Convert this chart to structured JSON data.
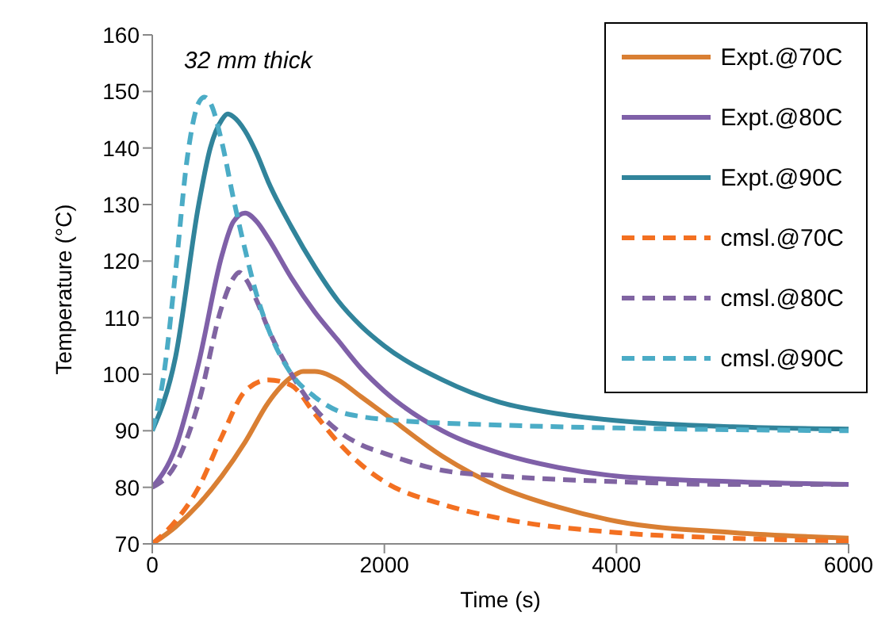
{
  "chart_data": {
    "type": "line",
    "xlabel": "Time (s)",
    "ylabel": "Temperature (°C)",
    "annotations": [
      "32 mm thick"
    ],
    "xlim": [
      0,
      6000
    ],
    "xticks": [
      0,
      2000,
      4000,
      6000
    ],
    "ylim": [
      70,
      160
    ],
    "yticks": [
      70,
      80,
      90,
      100,
      110,
      120,
      130,
      140,
      150,
      160
    ],
    "legend": "top right",
    "marker": "none",
    "series": [
      {
        "name": "Expt.@70C",
        "color": "#d97f33",
        "line_style": "solid",
        "x": [
          0,
          200,
          400,
          600,
          800,
          1000,
          1200,
          1300,
          1400,
          1600,
          1800,
          2000,
          2500,
          3000,
          3500,
          4000,
          5000,
          6000
        ],
        "values": [
          70,
          73,
          77,
          82,
          88,
          95,
          99.5,
          100.5,
          100.5,
          99,
          96,
          93,
          85.5,
          80,
          76.5,
          74,
          72,
          71
        ]
      },
      {
        "name": "Expt.@80C",
        "color": "#7f60a8",
        "line_style": "solid",
        "x": [
          0,
          200,
          400,
          600,
          700,
          800,
          900,
          1000,
          1200,
          1400,
          1600,
          1800,
          2000,
          2500,
          3000,
          3500,
          4000,
          5000,
          6000
        ],
        "values": [
          80,
          87,
          102,
          121,
          127,
          128.5,
          127,
          124,
          117,
          111,
          106,
          101,
          97,
          90,
          86,
          83.5,
          82,
          81,
          80.5
        ]
      },
      {
        "name": "Expt.@90C",
        "color": "#31849b",
        "line_style": "solid",
        "x": [
          0,
          200,
          400,
          500,
          600,
          650,
          700,
          800,
          900,
          1000,
          1200,
          1400,
          1600,
          1800,
          2000,
          2500,
          3000,
          3500,
          4000,
          5000,
          6000
        ],
        "values": [
          90,
          103,
          130,
          140,
          145,
          146,
          145.5,
          143,
          139,
          134,
          126,
          119,
          113,
          108.5,
          105,
          99,
          95,
          93,
          91.8,
          90.7,
          90.3
        ]
      },
      {
        "name": "cmsl.@70C",
        "color": "#f37021",
        "line_style": "dashed",
        "x": [
          0,
          200,
          400,
          600,
          800,
          1000,
          1200,
          1400,
          1600,
          1800,
          2000,
          2500,
          3000,
          4000,
          5000,
          6000
        ],
        "values": [
          70,
          74,
          80,
          89,
          97,
          99,
          98,
          93,
          88,
          84,
          81,
          77,
          74.5,
          72,
          71,
          70.5
        ]
      },
      {
        "name": "cmsl.@80C",
        "color": "#8064a2",
        "line_style": "dashed",
        "x": [
          0,
          200,
          400,
          600,
          700,
          750,
          800,
          900,
          1000,
          1200,
          1400,
          1600,
          1800,
          2000,
          2500,
          3000,
          4000,
          5000,
          6000
        ],
        "values": [
          80,
          84,
          95,
          112,
          117,
          118,
          117,
          113,
          108,
          100,
          94,
          90,
          87.5,
          86,
          83,
          82,
          81,
          80.5,
          80.5
        ]
      },
      {
        "name": "cmsl.@90C",
        "color": "#4bacc6",
        "line_style": "dashed",
        "x": [
          0,
          100,
          200,
          300,
          400,
          450,
          500,
          600,
          700,
          800,
          900,
          1000,
          1200,
          1400,
          1600,
          1800,
          2000,
          3000,
          4000,
          6000
        ],
        "values": [
          90,
          100,
          118,
          138,
          148,
          149,
          148,
          141,
          131,
          122,
          114,
          108,
          100,
          96,
          93.5,
          92.5,
          92,
          91,
          90.5,
          90
        ]
      }
    ]
  }
}
